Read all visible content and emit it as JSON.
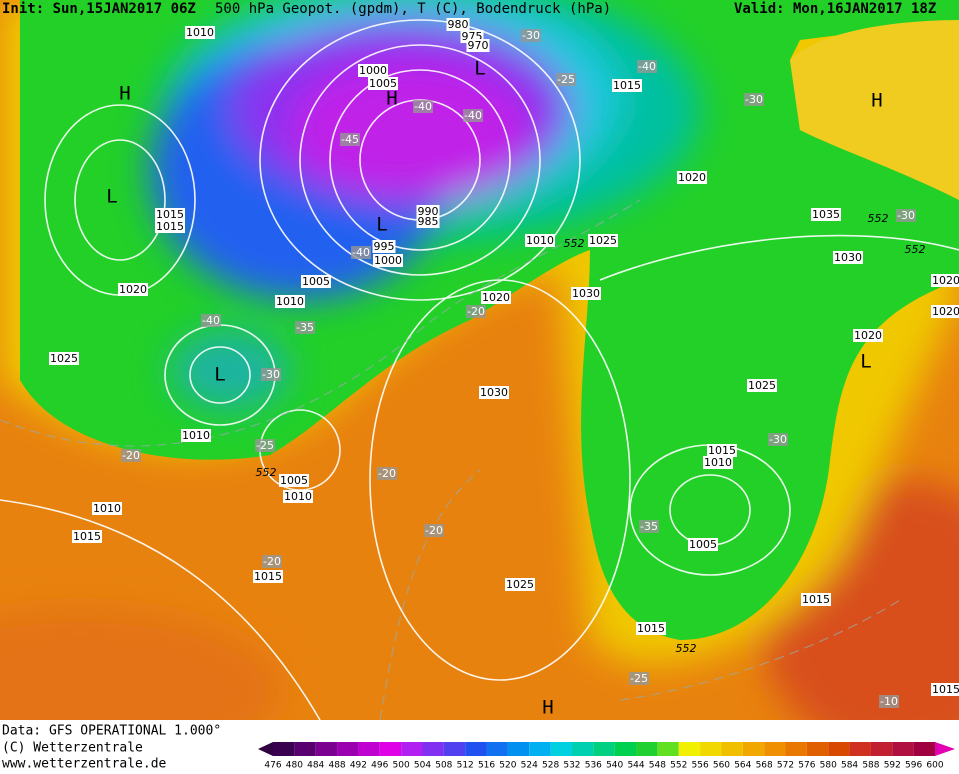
{
  "header": {
    "init": "Init: Sun,15JAN2017 06Z",
    "title": "500 hPa Geopot. (gpdm), T (C), Bodendruck (hPa)",
    "valid": "Valid: Mon,16JAN2017 18Z"
  },
  "map": {
    "pressure_labels": [
      "1010",
      "980",
      "975",
      "970",
      "1000",
      "1005",
      "1015",
      "1020",
      "1015",
      "1015",
      "990",
      "985",
      "995",
      "1000",
      "1010",
      "1025",
      "1035",
      "1030",
      "1005",
      "1010",
      "1020",
      "1030",
      "1020",
      "1025",
      "1020",
      "1030",
      "1025",
      "1010",
      "1015",
      "1010",
      "1005",
      "1010",
      "1010",
      "1015",
      "1005",
      "1015",
      "1025",
      "1015",
      "1015",
      "1020",
      "1020",
      "1015"
    ],
    "temperature_labels": [
      "-30",
      "-25",
      "-40",
      "-30",
      "-40",
      "-40",
      "-45",
      "-40",
      "-30",
      "-20",
      "-40",
      "-35",
      "-30",
      "-25",
      "-20",
      "-30",
      "-20",
      "-20",
      "-35",
      "-20",
      "-25",
      "-10"
    ],
    "contour_552_labels": [
      "552",
      "552",
      "552",
      "552",
      "552"
    ],
    "centers": [
      "H",
      "H",
      "L",
      "H",
      "L",
      "L",
      "L",
      "L",
      "H"
    ]
  },
  "footer": {
    "data": "Data: GFS OPERATIONAL 1.000°",
    "copyright": "(C) Wetterzentrale",
    "url": "www.wetterzentrale.de"
  },
  "legend": {
    "values": [
      476,
      480,
      484,
      488,
      492,
      496,
      500,
      504,
      508,
      512,
      516,
      520,
      524,
      528,
      532,
      536,
      540,
      544,
      548,
      552,
      556,
      560,
      564,
      568,
      572,
      576,
      580,
      584,
      588,
      592,
      596,
      600
    ]
  }
}
